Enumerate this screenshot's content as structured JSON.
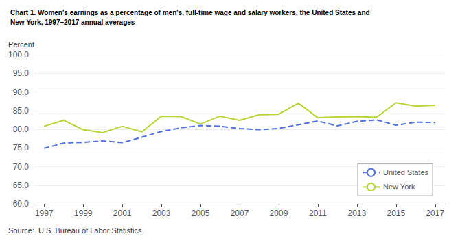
{
  "chart_data": {
    "type": "line",
    "title": [
      "Chart 1. Women's earnings as a percentage of men's, full-time wage and salary workers, the United States and",
      "New York, 1997–2017 annual averages"
    ],
    "ylabel": "Percent",
    "annotations": [
      "Source:  U.S. Bureau of Labor Statistics."
    ],
    "x": [
      1997,
      1998,
      1999,
      2000,
      2001,
      2002,
      2003,
      2004,
      2005,
      2006,
      2007,
      2008,
      2009,
      2010,
      2011,
      2012,
      2013,
      2014,
      2015,
      2016,
      2017
    ],
    "series": [
      {
        "name": "United States",
        "line_style": "dashed",
        "values": [
          74.9,
          76.3,
          76.5,
          76.9,
          76.4,
          77.9,
          79.4,
          80.4,
          81.0,
          80.8,
          80.2,
          79.9,
          80.2,
          81.2,
          82.2,
          80.9,
          82.1,
          82.5,
          81.1,
          81.9,
          81.8
        ]
      },
      {
        "name": "New York",
        "line_style": "solid",
        "values": [
          80.8,
          82.4,
          79.9,
          79.1,
          80.8,
          79.3,
          83.5,
          83.4,
          81.4,
          83.5,
          82.4,
          83.9,
          84.0,
          87.0,
          83.1,
          83.3,
          83.4,
          83.2,
          87.1,
          86.2,
          86.4
        ]
      }
    ],
    "xlim": [
      1996.5,
      2017.5
    ],
    "xticks": [
      1997,
      1999,
      2001,
      2003,
      2005,
      2007,
      2009,
      2011,
      2013,
      2015,
      2017
    ],
    "ylim": [
      60.0,
      100.0
    ],
    "yticks": [
      {
        "value": 60,
        "label": "60.0"
      },
      {
        "value": 65,
        "label": "65.0"
      },
      {
        "value": 70,
        "label": "70.0"
      },
      {
        "value": 75,
        "label": "75.0"
      },
      {
        "value": 80,
        "label": "80.0"
      },
      {
        "value": 85,
        "label": "85.0"
      },
      {
        "value": 90,
        "label": "90.0"
      },
      {
        "value": 95,
        "label": "95.0"
      },
      {
        "value": 100,
        "label": "100.0"
      }
    ],
    "grid": true,
    "legend": "lower right"
  }
}
